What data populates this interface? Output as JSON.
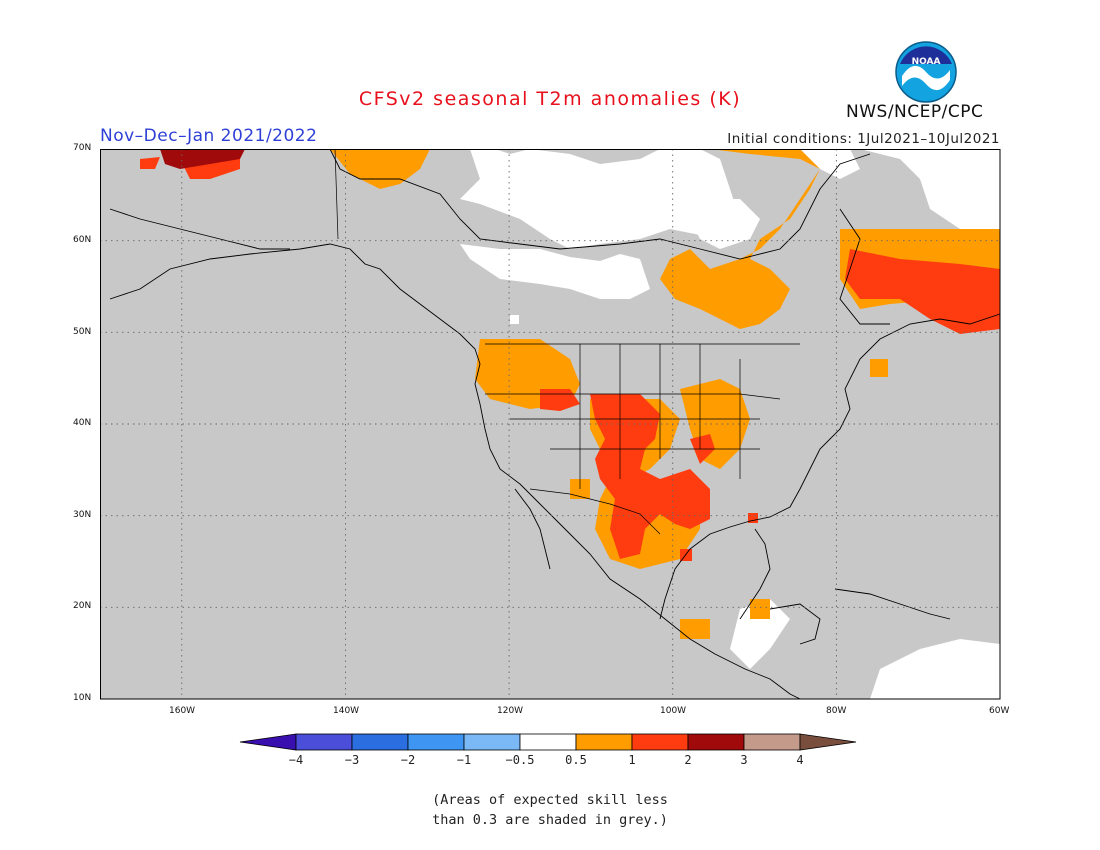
{
  "title": "CFSv2 seasonal T2m anomalies (K)",
  "period": "Nov–Dec–Jan 2021/2022",
  "initial_conditions": "Initial conditions: 1Jul2021–10Jul2021",
  "agency": "NWS/NCEP/CPC",
  "logo_text": "NOAA",
  "note_line1": "(Areas of expected skill less",
  "note_line2": "than 0.3 are shaded in grey.)",
  "map": {
    "lon_range": [
      -170,
      -60
    ],
    "lat_range": [
      10,
      70
    ],
    "lat_ticks": [
      "70N",
      "60N",
      "50N",
      "40N",
      "30N",
      "20N",
      "10N"
    ],
    "lon_ticks": [
      "160W",
      "140W",
      "120W",
      "100W",
      "80W",
      "60W"
    ],
    "colors": {
      "grey": "#c8c8c8",
      "white": "#ffffff",
      "orange": "#ff9c00",
      "red": "#ff3c10",
      "darkred": "#a00a0a",
      "coast": "#000000"
    }
  },
  "colorbar": {
    "labels": [
      "−4",
      "−3",
      "−2",
      "−1",
      "−0.5",
      "0.5",
      "1",
      "2",
      "3",
      "4"
    ],
    "colors": [
      "#3a0fb0",
      "#4a4ed8",
      "#2a6ee0",
      "#3f96f2",
      "#7ab8f6",
      "#ffffff",
      "#ff9c00",
      "#ff3c10",
      "#a00a0a",
      "#c49a8a",
      "#7a4e3c"
    ]
  }
}
